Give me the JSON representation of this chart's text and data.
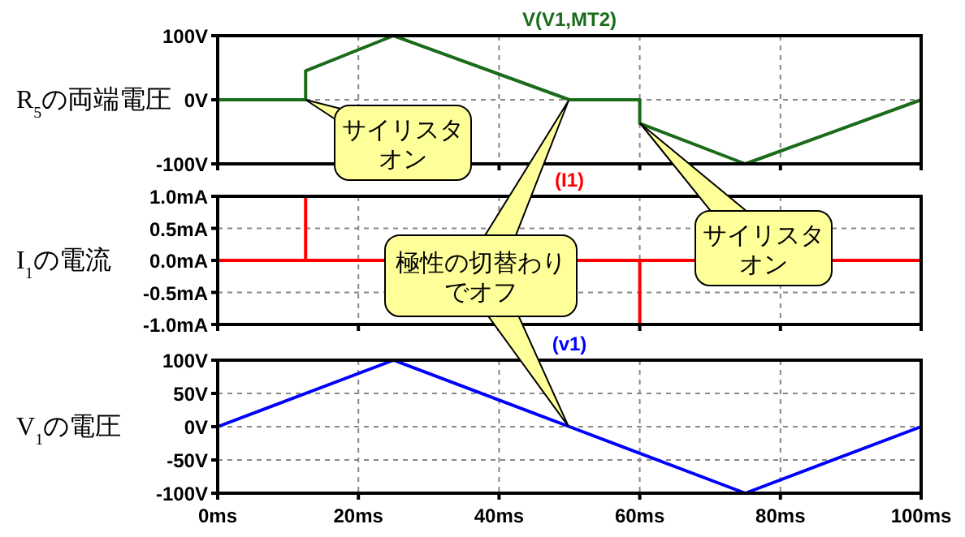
{
  "chart_data": [
    {
      "type": "line",
      "ylabel": "R$_{5}$の両端電圧",
      "xlim": [
        0,
        100
      ],
      "xticks": [
        {
          "value": 0,
          "label": null
        },
        {
          "value": 20,
          "label": null
        },
        {
          "value": 40,
          "label": null
        },
        {
          "value": 60,
          "label": null
        },
        {
          "value": 80,
          "label": null
        },
        {
          "value": 100,
          "label": null
        }
      ],
      "ylim": [
        -100,
        100
      ],
      "yticks": [
        {
          "value": 100,
          "label": "100V"
        },
        {
          "value": 0,
          "label": "0V"
        },
        {
          "value": -100,
          "label": "-100V"
        }
      ],
      "grid": true,
      "tick_labels": "y",
      "series": [
        {
          "name": "V(V1,MT2)",
          "color": "#1a6b1a",
          "x": [
            0,
            12.5,
            12.5,
            25,
            50,
            60,
            60,
            75,
            100
          ],
          "values": [
            0,
            0,
            45,
            100,
            0,
            0,
            -37,
            -100,
            0
          ]
        }
      ],
      "annotations": [
        {
          "text": "サイリスタオン",
          "x": 12.5,
          "y": 0
        },
        "サイリスタオン",
        "極性の切替わりでオフ"
      ]
    },
    {
      "type": "line",
      "ylabel": "I$_{1}$の電流",
      "xlim": [
        0,
        100
      ],
      "xticks": [
        {
          "value": 0,
          "label": null
        },
        {
          "value": 20,
          "label": null
        },
        {
          "value": 40,
          "label": null
        },
        {
          "value": 60,
          "label": null
        },
        {
          "value": 80,
          "label": null
        },
        {
          "value": 100,
          "label": null
        }
      ],
      "ylim": [
        -1,
        1
      ],
      "yticks": [
        {
          "value": 1,
          "label": "1.0mA"
        },
        {
          "value": 0.5,
          "label": "0.5mA"
        },
        {
          "value": 0,
          "label": "0.0mA"
        },
        {
          "value": -0.5,
          "label": "-0.5mA"
        },
        {
          "value": -1,
          "label": "-1.0mA"
        }
      ],
      "grid": true,
      "tick_labels": "y",
      "series": [
        {
          "name": "(I1)",
          "color": "#ff0000",
          "x": [
            0,
            12.5,
            12.5,
            12.5,
            60,
            60,
            60,
            100
          ],
          "values": [
            0,
            0,
            1,
            0,
            0,
            -1,
            0,
            0
          ]
        }
      ]
    },
    {
      "type": "line",
      "ylabel": "V$_{1}$の電圧",
      "xlim": [
        0,
        100
      ],
      "xticks": [
        {
          "value": 0,
          "label": "0ms"
        },
        {
          "value": 20,
          "label": "20ms"
        },
        {
          "value": 40,
          "label": "40ms"
        },
        {
          "value": 60,
          "label": "60ms"
        },
        {
          "value": 80,
          "label": "80ms"
        },
        {
          "value": 100,
          "label": "100ms"
        }
      ],
      "ylim": [
        -100,
        100
      ],
      "yticks": [
        {
          "value": 100,
          "label": "100V"
        },
        {
          "value": 50,
          "label": "50V"
        },
        {
          "value": 0,
          "label": "0V"
        },
        {
          "value": -50,
          "label": "-50V"
        },
        {
          "value": -100,
          "label": "-100V"
        }
      ],
      "grid": true,
      "series": [
        {
          "name": "(v1)",
          "color": "#0000ff",
          "x": [
            0,
            25,
            50,
            75,
            100
          ],
          "values": [
            0,
            100,
            0,
            -100,
            0
          ]
        }
      ]
    }
  ]
}
